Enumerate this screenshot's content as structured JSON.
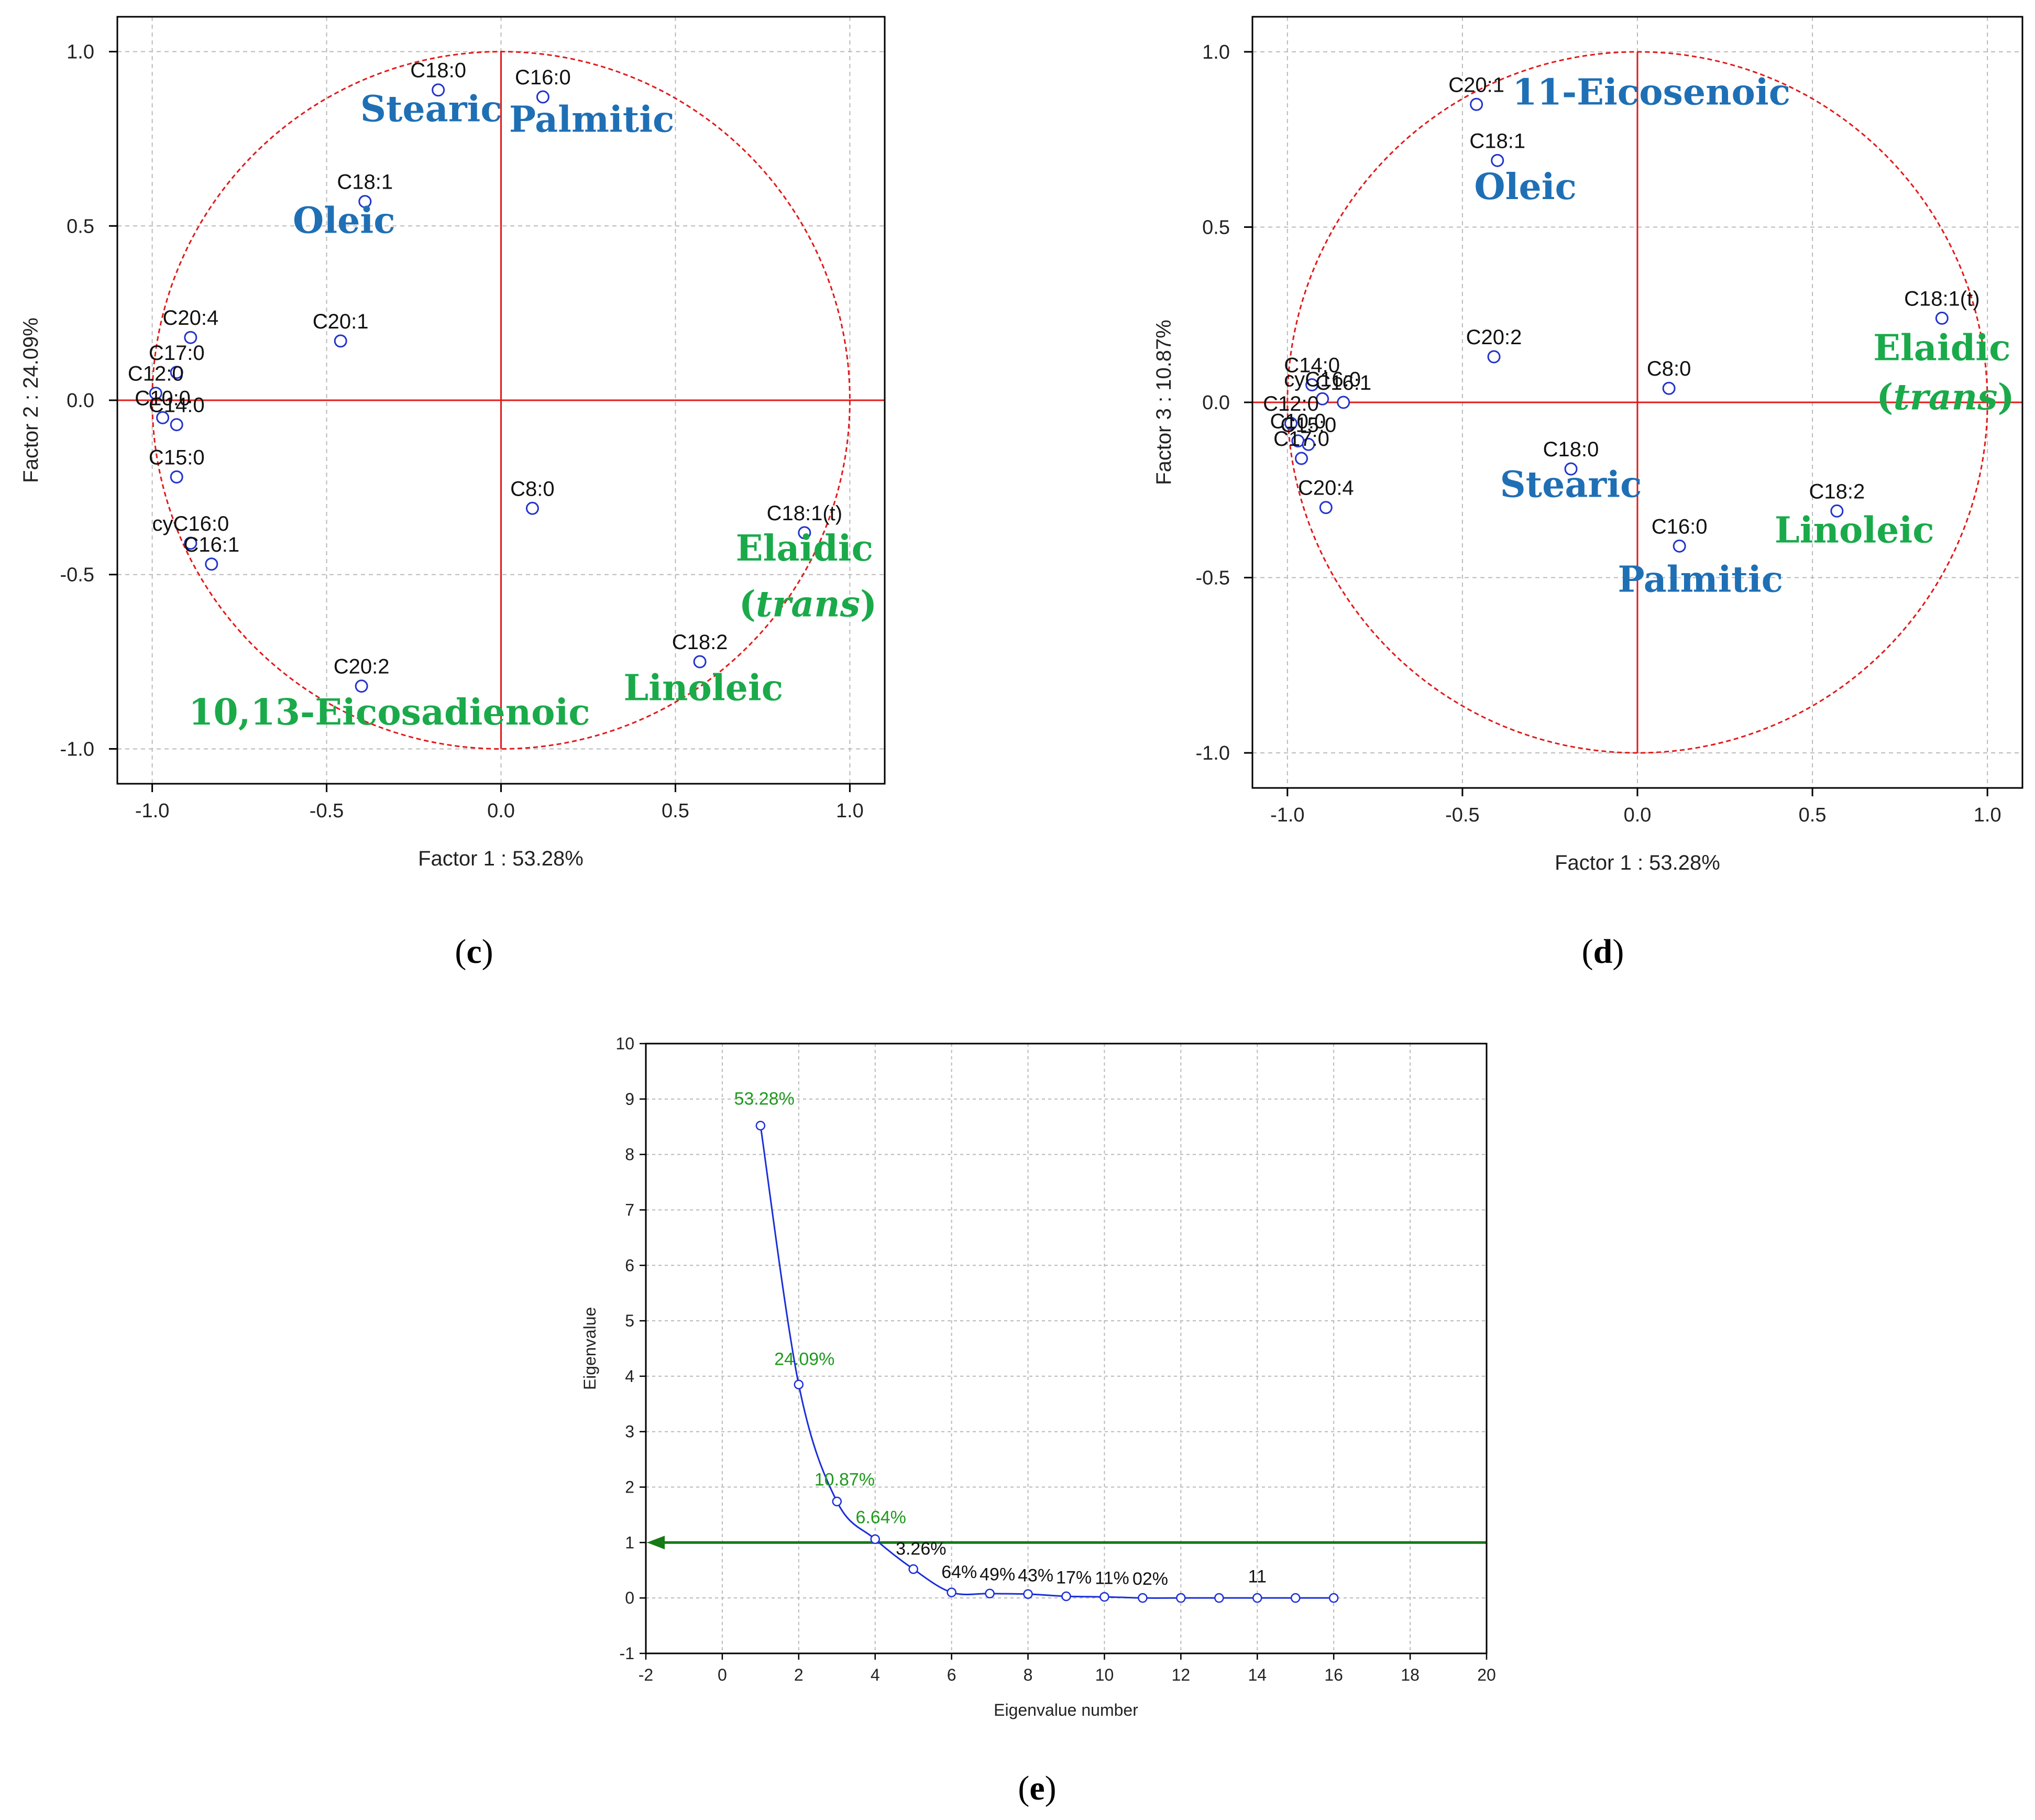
{
  "colors": {
    "blue_name": "#1f6fb5",
    "green_name": "#1aaa4a",
    "circle": "#e11a1a",
    "axis_cross": "#e11a1a",
    "marker": "#2233cc",
    "scree_line": "#1b2fd8",
    "cutoff_line": "#167a16",
    "pct_green": "#1f9a1f",
    "grid": "#b9b9b9"
  },
  "chart_data": [
    {
      "id": "c",
      "type": "scatter",
      "panel_label": "(c)",
      "panel_letter": "c",
      "xlabel": "Factor 1 : 53.28%",
      "ylabel": "Factor 2 : 24.09%",
      "xlim": [
        -1.1,
        1.1
      ],
      "ylim": [
        -1.1,
        1.1
      ],
      "xticks": [
        -1.0,
        -0.5,
        0.0,
        0.5,
        1.0
      ],
      "yticks": [
        -1.0,
        -0.5,
        0.0,
        0.5,
        1.0
      ],
      "xtick_labels": [
        "-1.0",
        "-0.5",
        "0.0",
        "0.5",
        "1.0"
      ],
      "ytick_labels": [
        "-1.0",
        "-0.5",
        "0.0",
        "0.5",
        "1.0"
      ],
      "unit_circle": true,
      "points": [
        {
          "label": "C18:0",
          "x": -0.18,
          "y": 0.89
        },
        {
          "label": "C16:0",
          "x": 0.12,
          "y": 0.87
        },
        {
          "label": "C18:1",
          "x": -0.39,
          "y": 0.57
        },
        {
          "label": "C20:1",
          "x": -0.46,
          "y": 0.17
        },
        {
          "label": "C20:4",
          "x": -0.89,
          "y": 0.18
        },
        {
          "label": "C17:0",
          "x": -0.93,
          "y": 0.08
        },
        {
          "label": "C12:0",
          "x": -0.99,
          "y": 0.02
        },
        {
          "label": "C10:0",
          "x": -0.97,
          "y": -0.05
        },
        {
          "label": "C14:0",
          "x": -0.93,
          "y": -0.07
        },
        {
          "label": "C15:0",
          "x": -0.93,
          "y": -0.22
        },
        {
          "label": "cyC16:0",
          "x": -0.89,
          "y": -0.41
        },
        {
          "label": "C16:1",
          "x": -0.83,
          "y": -0.47
        },
        {
          "label": "C8:0",
          "x": 0.09,
          "y": -0.31
        },
        {
          "label": "C18:1(t)",
          "x": 0.87,
          "y": -0.38
        },
        {
          "label": "C20:2",
          "x": -0.4,
          "y": -0.82
        },
        {
          "label": "C18:2",
          "x": 0.57,
          "y": -0.75
        }
      ],
      "names": [
        {
          "text": "Stearic",
          "color": "blue",
          "x": -0.2,
          "y": 0.8
        },
        {
          "text": "Palmitic",
          "color": "blue",
          "x": 0.26,
          "y": 0.77
        },
        {
          "text": "Oleic",
          "color": "blue",
          "x": -0.45,
          "y": 0.48
        },
        {
          "text": "Elaidic",
          "color": "green",
          "x": 0.87,
          "y": -0.46
        },
        {
          "prefix": "(",
          "italic": "trans",
          "suffix": ")",
          "color": "green",
          "x": 0.88,
          "y": -0.62
        },
        {
          "text": "Linoleic",
          "color": "green",
          "x": 0.58,
          "y": -0.86
        },
        {
          "text": "10,13-Eicosadienoic",
          "color": "green",
          "x": -0.32,
          "y": -0.93
        }
      ]
    },
    {
      "id": "d",
      "type": "scatter",
      "panel_label": "(d)",
      "panel_letter": "d",
      "xlabel": "Factor 1 : 53.28%",
      "ylabel": "Factor 3 : 10.87%",
      "xlim": [
        -1.1,
        1.1
      ],
      "ylim": [
        -1.1,
        1.1
      ],
      "xticks": [
        -1.0,
        -0.5,
        0.0,
        0.5,
        1.0
      ],
      "yticks": [
        -1.0,
        -0.5,
        0.0,
        0.5,
        1.0
      ],
      "xtick_labels": [
        "-1.0",
        "-0.5",
        "0.0",
        "0.5",
        "1.0"
      ],
      "ytick_labels": [
        "-1.0",
        "-0.5",
        "0.0",
        "0.5",
        "1.0"
      ],
      "unit_circle": true,
      "points": [
        {
          "label": "C20:1",
          "x": -0.46,
          "y": 0.85
        },
        {
          "label": "C18:1",
          "x": -0.4,
          "y": 0.69
        },
        {
          "label": "C18:1(t)",
          "x": 0.87,
          "y": 0.24
        },
        {
          "label": "C20:2",
          "x": -0.41,
          "y": 0.13
        },
        {
          "label": "C8:0",
          "x": 0.09,
          "y": 0.04
        },
        {
          "label": "C14:0",
          "x": -0.93,
          "y": 0.05
        },
        {
          "label": "cyC16:0",
          "x": -0.9,
          "y": 0.01
        },
        {
          "label": "C16:1",
          "x": -0.84,
          "y": 0.0
        },
        {
          "label": "C12:0",
          "x": -0.99,
          "y": -0.06
        },
        {
          "label": "C10:0",
          "x": -0.97,
          "y": -0.11
        },
        {
          "label": "C15:0",
          "x": -0.94,
          "y": -0.12
        },
        {
          "label": "C17:0",
          "x": -0.96,
          "y": -0.16
        },
        {
          "label": "C20:4",
          "x": -0.89,
          "y": -0.3
        },
        {
          "label": "C18:0",
          "x": -0.19,
          "y": -0.19
        },
        {
          "label": "C16:0",
          "x": 0.12,
          "y": -0.41
        },
        {
          "label": "C18:2",
          "x": 0.57,
          "y": -0.31
        }
      ],
      "names": [
        {
          "text": "11-Eicosenoic",
          "color": "blue",
          "x": 0.04,
          "y": 0.85
        },
        {
          "text": "Oleic",
          "color": "blue",
          "x": -0.32,
          "y": 0.58
        },
        {
          "text": "Elaidic",
          "color": "green",
          "x": 0.87,
          "y": 0.12
        },
        {
          "prefix": "(",
          "italic": "trans",
          "suffix": ")",
          "color": "green",
          "x": 0.88,
          "y": -0.02
        },
        {
          "text": "Stearic",
          "color": "blue",
          "x": -0.19,
          "y": -0.27
        },
        {
          "text": "Linoleic",
          "color": "green",
          "x": 0.62,
          "y": -0.4
        },
        {
          "text": "Palmitic",
          "color": "blue",
          "x": 0.18,
          "y": -0.54
        }
      ]
    },
    {
      "id": "e",
      "type": "line",
      "panel_label": "(e)",
      "panel_letter": "e",
      "xlabel": "Eigenvalue number",
      "ylabel": "Eigenvalue",
      "xlim": [
        -2,
        20
      ],
      "ylim": [
        -1,
        10
      ],
      "xticks": [
        -2,
        0,
        2,
        4,
        6,
        8,
        10,
        12,
        14,
        16,
        18,
        20
      ],
      "yticks": [
        -1,
        0,
        1,
        2,
        3,
        4,
        5,
        6,
        7,
        8,
        9,
        10
      ],
      "xtick_labels": [
        "-2",
        "0",
        "2",
        "4",
        "6",
        "8",
        "10",
        "12",
        "14",
        "16",
        "18",
        "20"
      ],
      "ytick_labels": [
        "-1",
        "0",
        "1",
        "2",
        "3",
        "4",
        "5",
        "6",
        "7",
        "8",
        "9",
        "10"
      ],
      "x": [
        1,
        2,
        3,
        4,
        5,
        6,
        7,
        8,
        9,
        10,
        11,
        12,
        13,
        14,
        15,
        16
      ],
      "values": [
        8.52,
        3.85,
        1.74,
        1.06,
        0.52,
        0.1,
        0.08,
        0.07,
        0.03,
        0.02,
        0.0,
        0.0,
        0.0,
        0.0,
        0.0,
        0.0
      ],
      "cutoff": 1,
      "pct_labels": [
        {
          "text": "53.28%",
          "color": "green",
          "x": 1.1,
          "y": 8.9
        },
        {
          "text": "24.09%",
          "color": "green",
          "x": 2.15,
          "y": 4.2
        },
        {
          "text": "10.87%",
          "color": "green",
          "x": 3.2,
          "y": 2.03
        },
        {
          "text": "6.64%",
          "color": "green",
          "x": 4.15,
          "y": 1.35
        },
        {
          "text": "3.26%",
          "color": "black",
          "x": 5.2,
          "y": 0.78
        },
        {
          "text": "64%",
          "color": "black",
          "x": 6.2,
          "y": 0.36
        },
        {
          "text": "49%",
          "color": "black",
          "x": 7.2,
          "y": 0.32
        },
        {
          "text": "43%",
          "color": "black",
          "x": 8.2,
          "y": 0.3
        },
        {
          "text": "17%",
          "color": "black",
          "x": 9.2,
          "y": 0.26
        },
        {
          "text": "11%",
          "color": "black",
          "x": 10.2,
          "y": 0.25
        },
        {
          "text": "02%",
          "color": "black",
          "x": 11.2,
          "y": 0.24
        },
        {
          "text": "11",
          "color": "black",
          "x": 14.0,
          "y": 0.28
        }
      ]
    }
  ]
}
